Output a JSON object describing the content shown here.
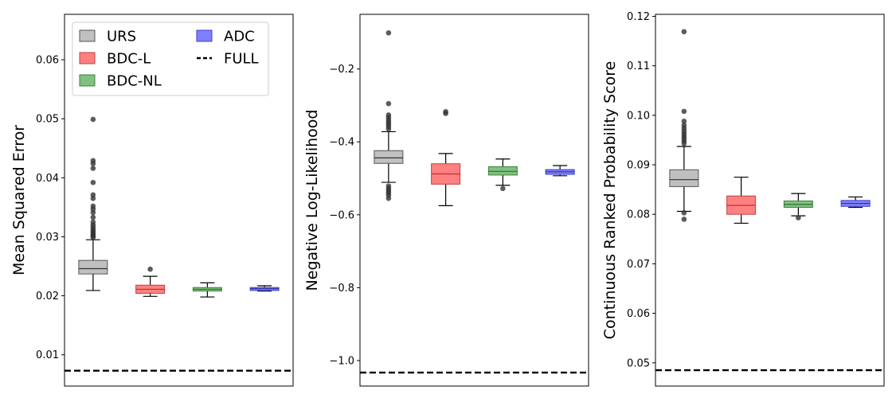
{
  "chart_data": [
    {
      "type": "box",
      "ylabel": "Mean Squared Error",
      "ylim": [
        0.0047,
        0.0677
      ],
      "yticks": [
        0.01,
        0.02,
        0.03,
        0.04,
        0.05,
        0.06
      ],
      "ytick_labels": [
        "0.01",
        "0.02",
        "0.03",
        "0.04",
        "0.05",
        "0.06"
      ],
      "reference": {
        "name": "FULL",
        "value": 0.0073
      },
      "boxes": [
        {
          "name": "URS",
          "whislo": 0.0209,
          "q1": 0.0237,
          "med": 0.0246,
          "q3": 0.026,
          "whishi": 0.0295,
          "fliers": [
            0.0299,
            0.0301,
            0.0303,
            0.0306,
            0.0309,
            0.0312,
            0.0316,
            0.032,
            0.0325,
            0.0333,
            0.0341,
            0.0347,
            0.0352,
            0.0365,
            0.0371,
            0.0392,
            0.0416,
            0.0424,
            0.0429,
            0.0499
          ]
        },
        {
          "name": "BDC-L",
          "whislo": 0.0199,
          "q1": 0.0204,
          "med": 0.0211,
          "q3": 0.0218,
          "whishi": 0.0233,
          "fliers": [
            0.0245
          ]
        },
        {
          "name": "BDC-NL",
          "whislo": 0.0198,
          "q1": 0.0208,
          "med": 0.0211,
          "q3": 0.0214,
          "whishi": 0.0222,
          "fliers": []
        },
        {
          "name": "ADC",
          "whislo": 0.0208,
          "q1": 0.0209,
          "med": 0.0212,
          "q3": 0.0214,
          "whishi": 0.0217,
          "fliers": []
        }
      ]
    },
    {
      "type": "box",
      "ylabel": "Negative Log-Likelihood",
      "ylim": [
        -1.07,
        -0.05
      ],
      "yticks": [
        -1.0,
        -0.8,
        -0.6,
        -0.4,
        -0.2
      ],
      "ytick_labels": [
        "−1.0",
        "−0.8",
        "−0.6",
        "−0.4",
        "−0.2"
      ],
      "reference": {
        "name": "FULL",
        "value": -1.033
      },
      "boxes": [
        {
          "name": "URS",
          "whislo": -0.511,
          "q1": -0.459,
          "med": -0.444,
          "q3": -0.424,
          "whishi": -0.372,
          "fliers": [
            -0.101,
            -0.295,
            -0.326,
            -0.333,
            -0.34,
            -0.346,
            -0.352,
            -0.358,
            -0.365,
            -0.521,
            -0.528,
            -0.534,
            -0.54,
            -0.546,
            -0.555
          ]
        },
        {
          "name": "BDC-L",
          "whislo": -0.575,
          "q1": -0.516,
          "med": -0.488,
          "q3": -0.46,
          "whishi": -0.432,
          "fliers": [
            -0.317,
            -0.322
          ]
        },
        {
          "name": "BDC-NL",
          "whislo": -0.519,
          "q1": -0.491,
          "med": -0.481,
          "q3": -0.468,
          "whishi": -0.447,
          "fliers": [
            -0.528
          ]
        },
        {
          "name": "ADC",
          "whislo": -0.493,
          "q1": -0.489,
          "med": -0.482,
          "q3": -0.476,
          "whishi": -0.465,
          "fliers": []
        }
      ]
    },
    {
      "type": "box",
      "ylabel": "Continuous Ranked Probability Score",
      "ylim": [
        0.0453,
        0.1204
      ],
      "yticks": [
        0.05,
        0.06,
        0.07,
        0.08,
        0.09,
        0.1,
        0.11,
        0.12
      ],
      "ytick_labels": [
        "0.05",
        "0.06",
        "0.07",
        "0.08",
        "0.09",
        "0.10",
        "0.11",
        "0.12"
      ],
      "reference": {
        "name": "FULL",
        "value": 0.0485
      },
      "boxes": [
        {
          "name": "URS",
          "whislo": 0.0806,
          "q1": 0.0856,
          "med": 0.087,
          "q3": 0.089,
          "whishi": 0.0937,
          "fliers": [
            0.0943,
            0.0948,
            0.0953,
            0.0958,
            0.0963,
            0.0968,
            0.0974,
            0.098,
            0.0988,
            0.1008,
            0.1169,
            0.0803,
            0.079
          ]
        },
        {
          "name": "BDC-L",
          "whislo": 0.0782,
          "q1": 0.08,
          "med": 0.0818,
          "q3": 0.0837,
          "whishi": 0.0875,
          "fliers": []
        },
        {
          "name": "BDC-NL",
          "whislo": 0.0797,
          "q1": 0.0814,
          "med": 0.082,
          "q3": 0.0827,
          "whishi": 0.0842,
          "fliers": [
            0.0793
          ]
        },
        {
          "name": "ADC",
          "whislo": 0.0814,
          "q1": 0.0816,
          "med": 0.0822,
          "q3": 0.0828,
          "whishi": 0.0835,
          "fliers": []
        }
      ]
    }
  ],
  "legend": [
    {
      "name": "URS",
      "kind": "patch",
      "fill": "#c0c0c0",
      "edge": "#555555"
    },
    {
      "name": "BDC-L",
      "kind": "patch",
      "fill": "#ff8080",
      "edge": "#c04040"
    },
    {
      "name": "BDC-NL",
      "kind": "patch",
      "fill": "#80c080",
      "edge": "#408040"
    },
    {
      "name": "ADC",
      "kind": "patch",
      "fill": "#8080ff",
      "edge": "#4040c0"
    },
    {
      "name": "FULL",
      "kind": "line",
      "color": "#000000"
    }
  ],
  "colors": {
    "URS": {
      "fill": "#c0c0c0",
      "edge": "#555555",
      "median": "#333333"
    },
    "BDC-L": {
      "fill": "#ff8080",
      "edge": "#c04040",
      "median": "#c03030"
    },
    "BDC-NL": {
      "fill": "#80c080",
      "edge": "#408040",
      "median": "#2f6f2f"
    },
    "ADC": {
      "fill": "#8080ff",
      "edge": "#4040c0",
      "median": "#3030a0"
    }
  }
}
